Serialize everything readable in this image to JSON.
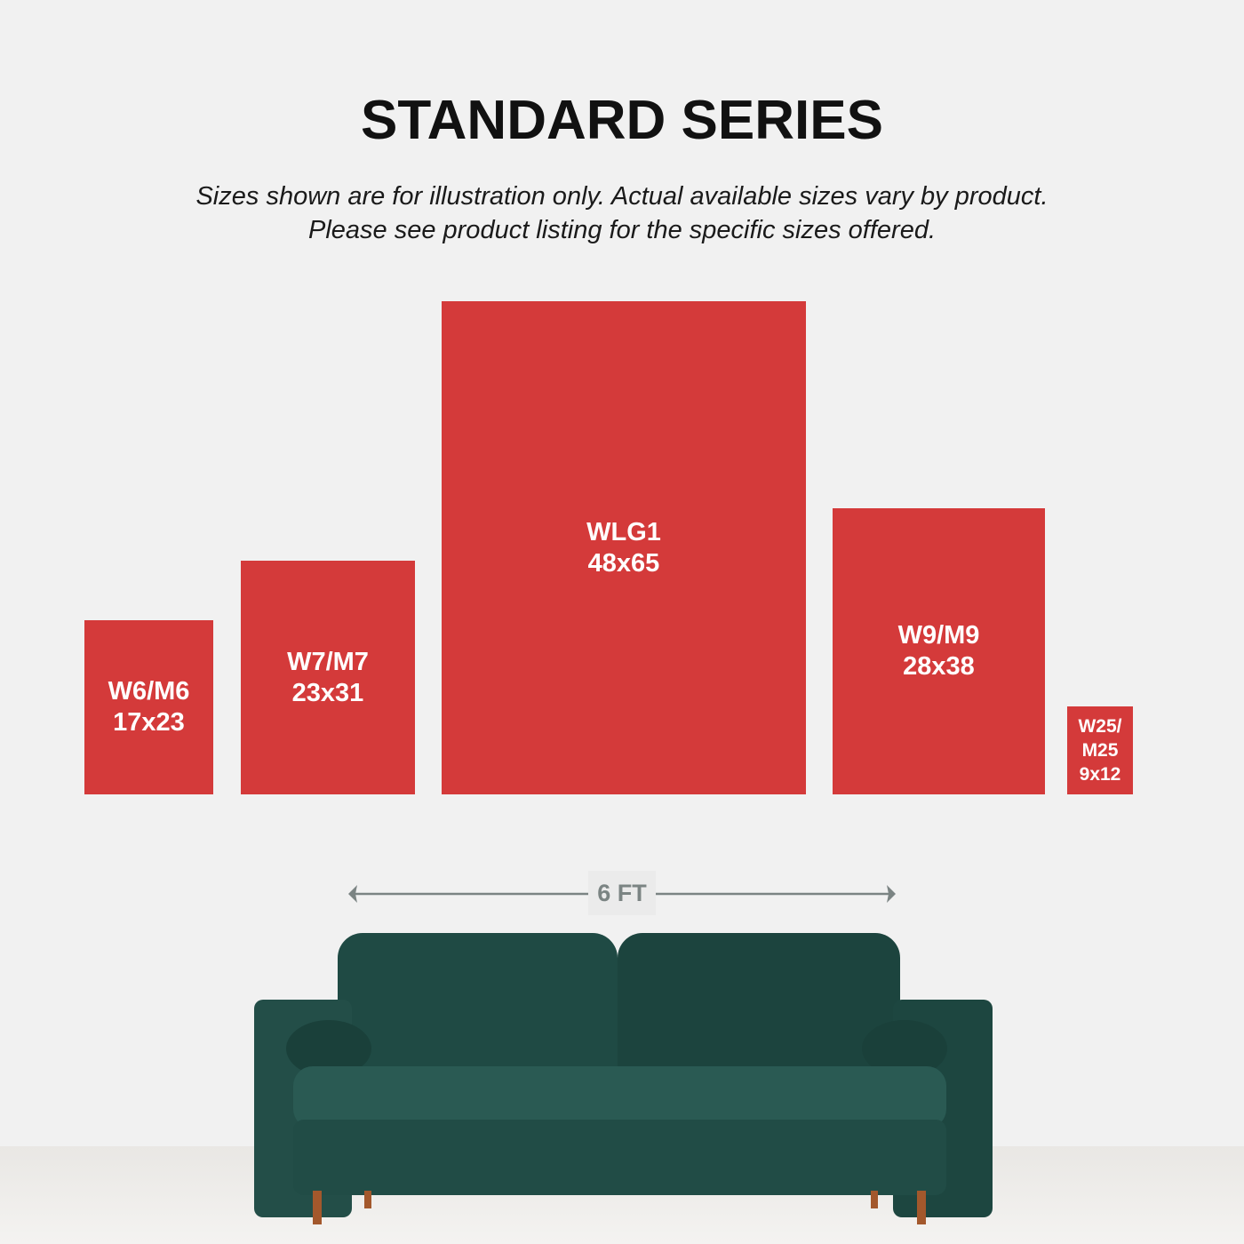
{
  "title": "STANDARD SERIES",
  "subtitle_lines": [
    "Sizes shown are for illustration only. Actual available sizes vary by product.",
    "Please see product listing for the specific sizes offered."
  ],
  "colors": {
    "box": "#d43a3a",
    "background": "#f1f1f1",
    "dimension": "#7b8483",
    "sofa": "#1f4a44"
  },
  "sizes": [
    {
      "code": "W6/M6",
      "size": "17x23"
    },
    {
      "code": "W7/M7",
      "size": "23x31"
    },
    {
      "code": "WLG1",
      "size": "48x65"
    },
    {
      "code": "W9/M9",
      "size": "28x38"
    },
    {
      "code_line1": "W25/",
      "code_line2": "M25",
      "size": "9x12"
    }
  ],
  "dimension_label": "6 FT",
  "icons": [
    "arrow-left-icon",
    "arrow-right-icon"
  ]
}
